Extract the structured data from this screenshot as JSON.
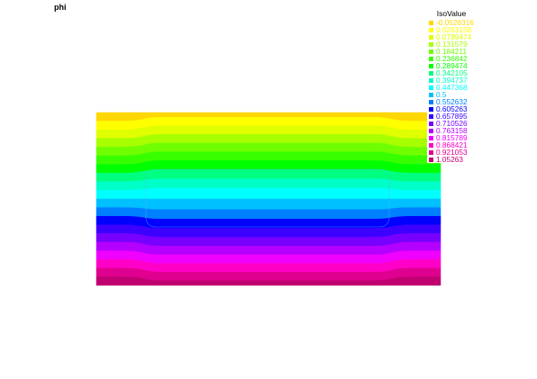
{
  "chart_data": {
    "type": "heatmap",
    "title": "phi",
    "legend_title": "IsoValue",
    "legend_position": "top-right",
    "isovalues": [
      {
        "value": "-0.0526316",
        "color": "#ffd700"
      },
      {
        "value": "0.0263158",
        "color": "#ffff00"
      },
      {
        "value": "0.0789474",
        "color": "#e0ff00"
      },
      {
        "value": "0.131579",
        "color": "#a8ff00"
      },
      {
        "value": "0.184211",
        "color": "#70ff00"
      },
      {
        "value": "0.236842",
        "color": "#38ff00"
      },
      {
        "value": "0.289474",
        "color": "#00ff00"
      },
      {
        "value": "0.342105",
        "color": "#00ff80"
      },
      {
        "value": "0.394737",
        "color": "#00ffc8"
      },
      {
        "value": "0.447368",
        "color": "#00ffff"
      },
      {
        "value": "0.5",
        "color": "#00c0ff"
      },
      {
        "value": "0.552632",
        "color": "#0080ff"
      },
      {
        "value": "0.605263",
        "color": "#0000ff"
      },
      {
        "value": "0.657895",
        "color": "#3c00ff"
      },
      {
        "value": "0.710526",
        "color": "#7800ff"
      },
      {
        "value": "0.763158",
        "color": "#b400ff"
      },
      {
        "value": "0.815789",
        "color": "#f000ff"
      },
      {
        "value": "0.868421",
        "color": "#ff00c8"
      },
      {
        "value": "0.921053",
        "color": "#e00090"
      },
      {
        "value": "1.05263",
        "color": "#c00070"
      }
    ]
  }
}
